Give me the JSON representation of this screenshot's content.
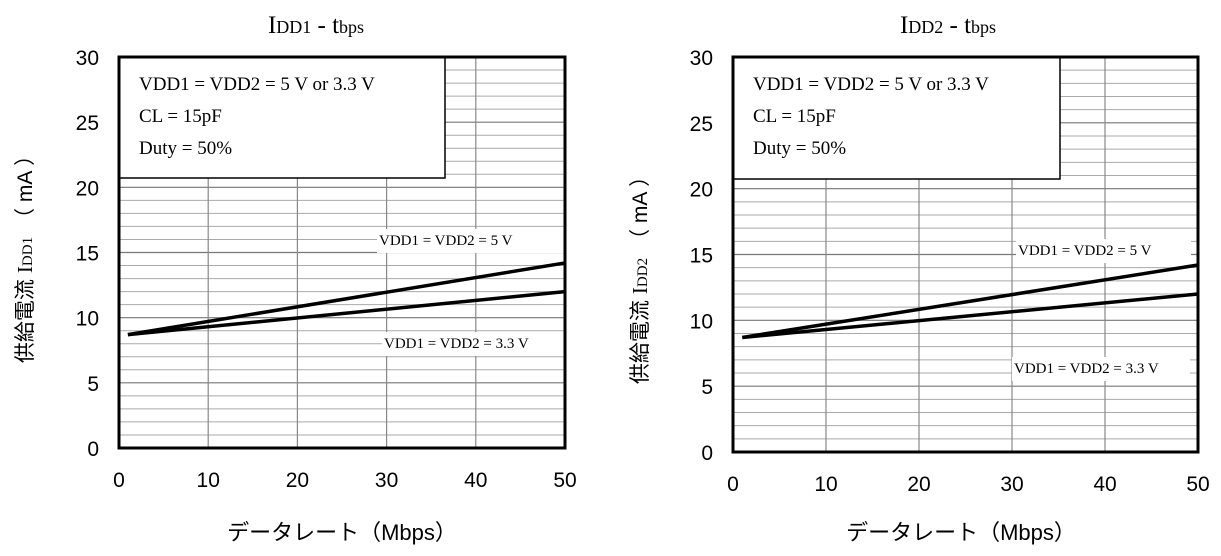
{
  "chart_data": [
    {
      "type": "line",
      "title": "IDD1 - tbps",
      "title_main": "I",
      "title_sub1": "DD1",
      "title_mid": " - t",
      "title_sub2": "bps",
      "xlabel": "データレート（Mbps）",
      "xlabel_jp": "データレート（",
      "xlabel_unit": "Mbps",
      "xlabel_close": "）",
      "ylabel": "供給電流 IDD1 （mA）",
      "ylabel_jp": "供給電流",
      "ylabel_i": "I",
      "ylabel_sub": "DD1",
      "ylabel_unit": "（ mA ）",
      "xlim": [
        0,
        50
      ],
      "ylim": [
        0,
        30
      ],
      "x_ticks": [
        "0",
        "10",
        "20",
        "30",
        "40",
        "50"
      ],
      "y_ticks": [
        "0",
        "5",
        "10",
        "15",
        "20",
        "25",
        "30"
      ],
      "grid": true,
      "conditions": [
        "VDD1 = VDD2 = 5 V or 3.3 V",
        "CL = 15pF",
        "Duty = 50%"
      ],
      "series": [
        {
          "name": "VDD1 = VDD2 = 5 V",
          "x": [
            1,
            50
          ],
          "y": [
            8.7,
            14.2
          ]
        },
        {
          "name": "VDD1 = VDD2 = 3.3 V",
          "x": [
            1,
            50
          ],
          "y": [
            8.7,
            12.0
          ]
        }
      ]
    },
    {
      "type": "line",
      "title": "IDD2 - tbps",
      "title_main": "I",
      "title_sub1": "DD2",
      "title_mid": " - t",
      "title_sub2": "bps",
      "xlabel": "データレート（Mbps）",
      "xlabel_jp": "データレート（",
      "xlabel_unit": "Mbps",
      "xlabel_close": "）",
      "ylabel": "供給電流 IDD2 （mA）",
      "ylabel_jp": "供給電流",
      "ylabel_i": "I",
      "ylabel_sub": "DD2",
      "ylabel_unit": "（ mA ）",
      "xlim": [
        0,
        50
      ],
      "ylim": [
        0,
        30
      ],
      "x_ticks": [
        "0",
        "10",
        "20",
        "30",
        "40",
        "50"
      ],
      "y_ticks": [
        "0",
        "5",
        "10",
        "15",
        "20",
        "25",
        "30"
      ],
      "grid": true,
      "conditions": [
        "VDD1 = VDD2 = 5 V or 3.3 V",
        "CL = 15pF",
        "Duty = 50%"
      ],
      "series": [
        {
          "name": "VDD1 = VDD2 = 5 V",
          "x": [
            1,
            50
          ],
          "y": [
            8.7,
            14.2
          ]
        },
        {
          "name": "VDD1 = VDD2 = 3.3 V",
          "x": [
            1,
            50
          ],
          "y": [
            8.7,
            12.0
          ]
        }
      ]
    }
  ]
}
